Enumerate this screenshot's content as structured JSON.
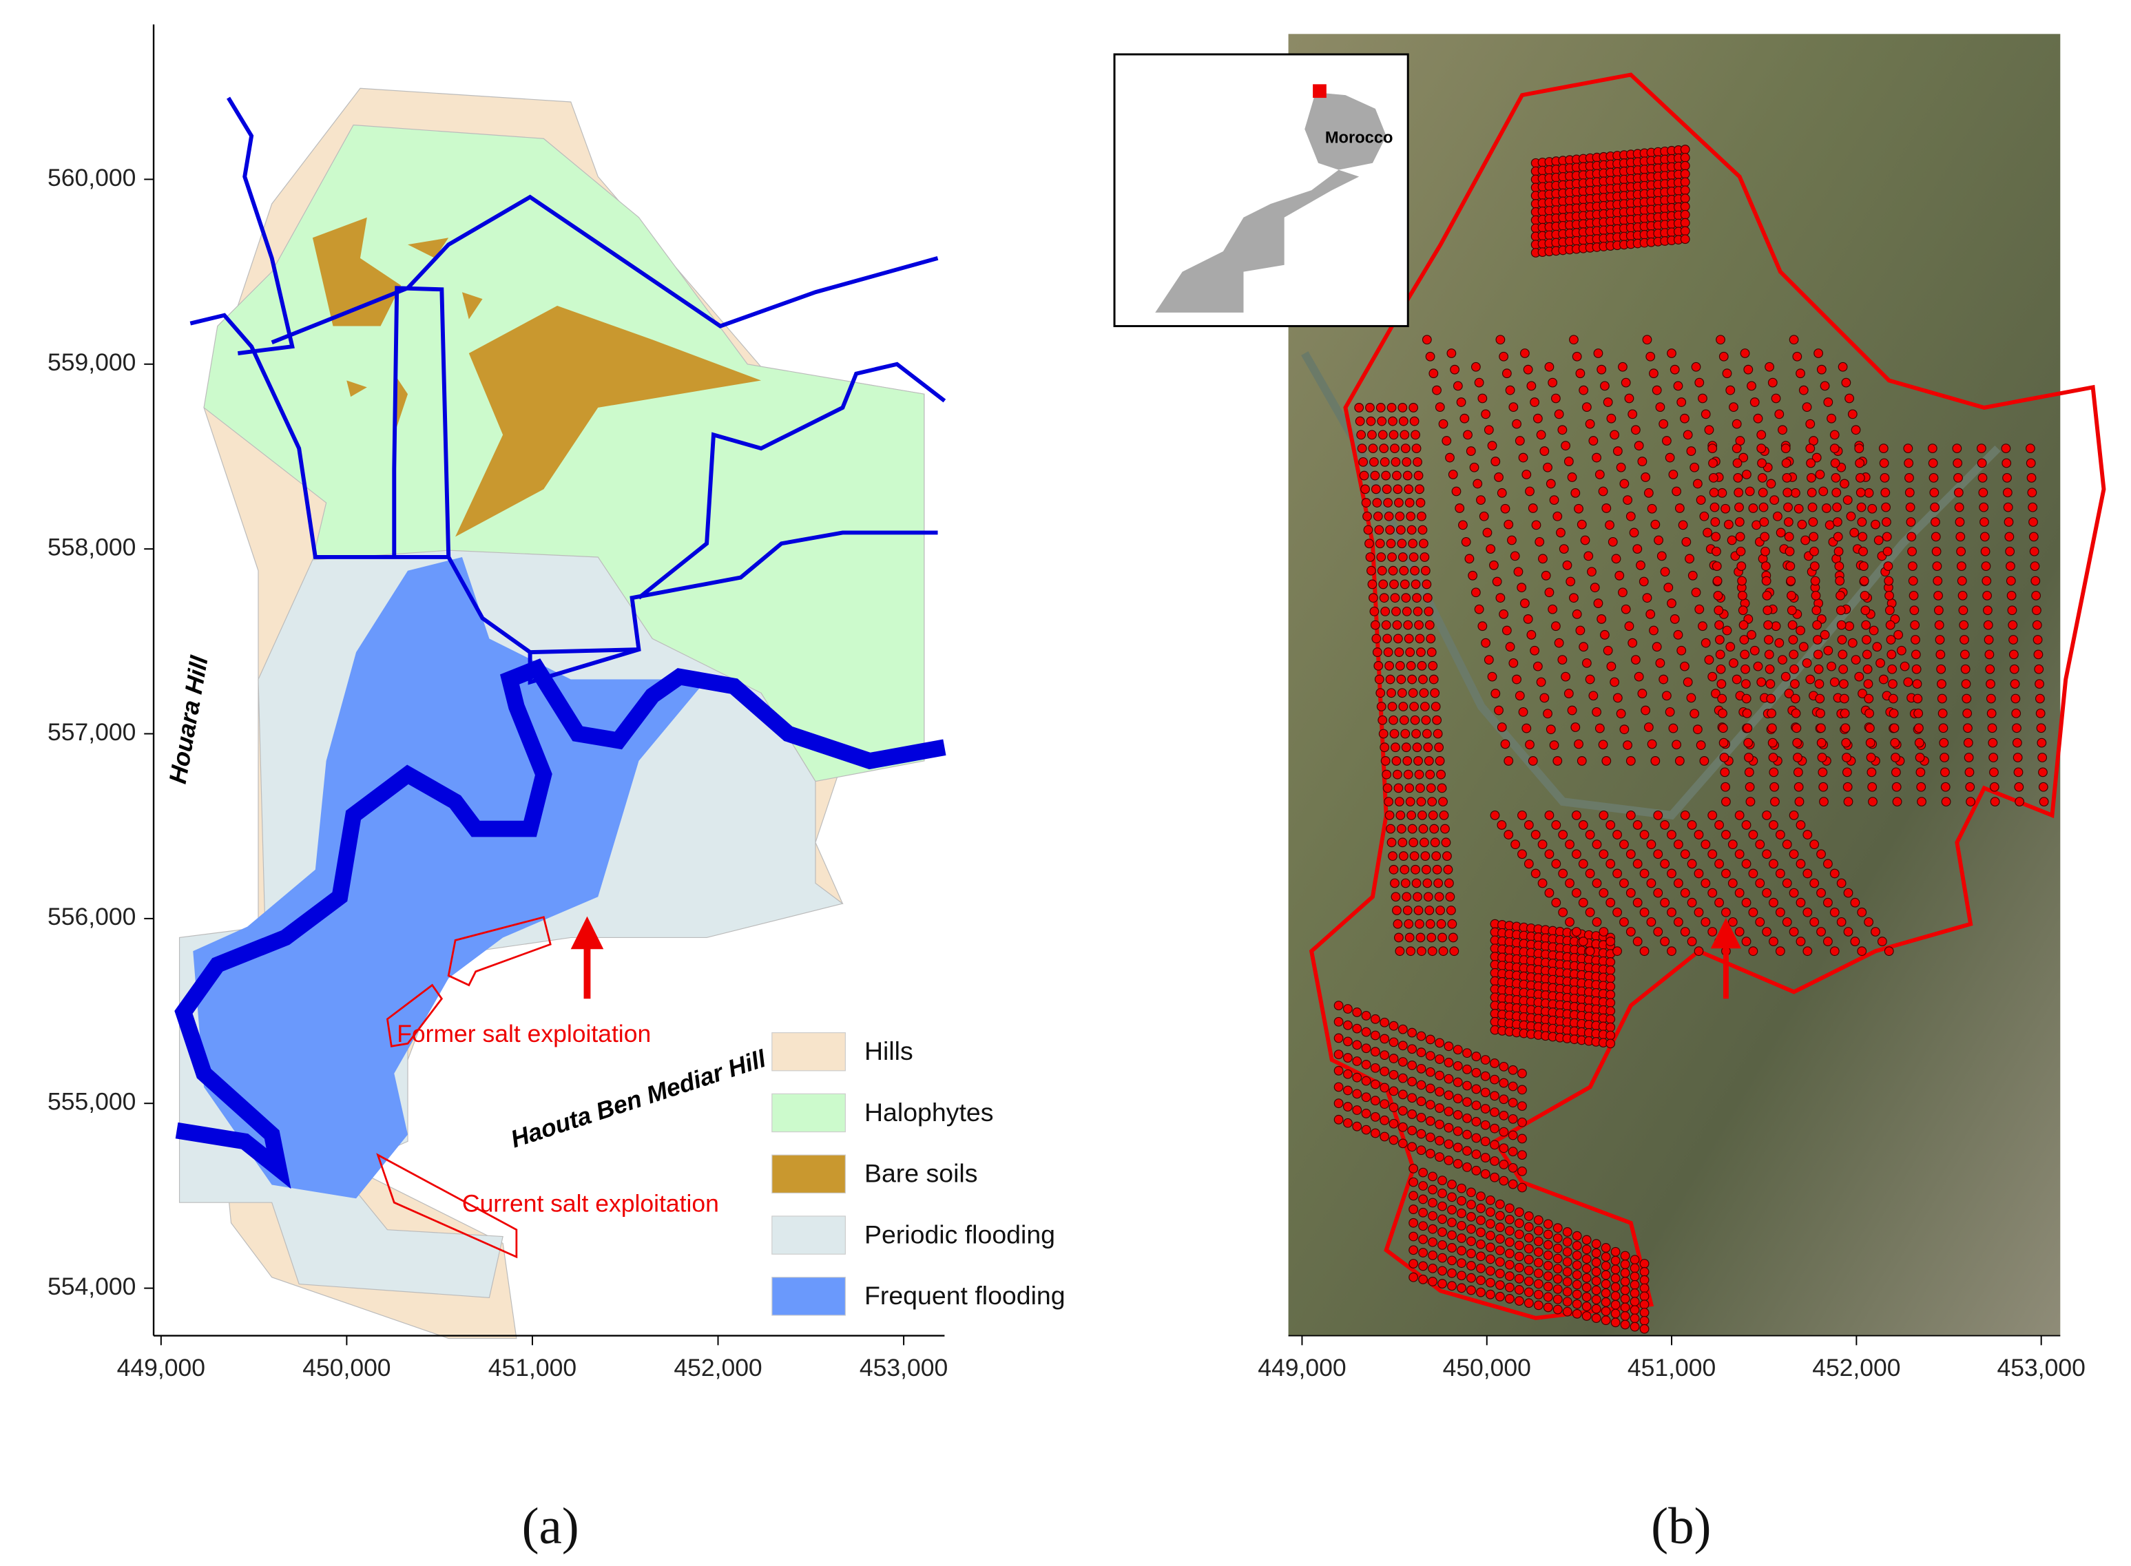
{
  "panel_a": {
    "xlim": [
      448960,
      453220
    ],
    "ylim": [
      553743,
      560838
    ],
    "xticks": [
      {
        "value": 449000,
        "label": "449,000"
      },
      {
        "value": 450000,
        "label": "450,000"
      },
      {
        "value": 451000,
        "label": "451,000"
      },
      {
        "value": 452000,
        "label": "452,000"
      },
      {
        "value": 453000,
        "label": "453,000"
      }
    ],
    "yticks": [
      {
        "value": 554000,
        "label": "554,000"
      },
      {
        "value": 555000,
        "label": "555,000"
      },
      {
        "value": 556000,
        "label": "556,000"
      },
      {
        "value": 557000,
        "label": "557,000"
      },
      {
        "value": 558000,
        "label": "558,000"
      },
      {
        "value": 559000,
        "label": "559,000"
      },
      {
        "value": 560000,
        "label": "560,000"
      }
    ],
    "labels": {
      "houara": "Houara Hill",
      "haouta": "Haouta Ben Mediar Hill",
      "former": "Former salt exploitation",
      "current": "Current salt exploitation"
    },
    "legend": [
      {
        "name": "Hills",
        "color": "#f7e4cb"
      },
      {
        "name": "Halophytes",
        "color": "#ccfacc"
      },
      {
        "name": "Bare soils",
        "color": "#c9982f"
      },
      {
        "name": "Periodic flooding",
        "color": "#dde9ec"
      },
      {
        "name": "Frequent flooding",
        "color": "#6a99fc"
      }
    ],
    "caption": "(a)"
  },
  "panel_b": {
    "xlim": [
      448926,
      453103
    ],
    "xticks": [
      {
        "value": 449000,
        "label": "449,000"
      },
      {
        "value": 450000,
        "label": "450,000"
      },
      {
        "value": 451000,
        "label": "451,000"
      },
      {
        "value": 452000,
        "label": "452,000"
      },
      {
        "value": 453000,
        "label": "453,000"
      }
    ],
    "inset_label": "Morocco",
    "caption": "(b)"
  }
}
